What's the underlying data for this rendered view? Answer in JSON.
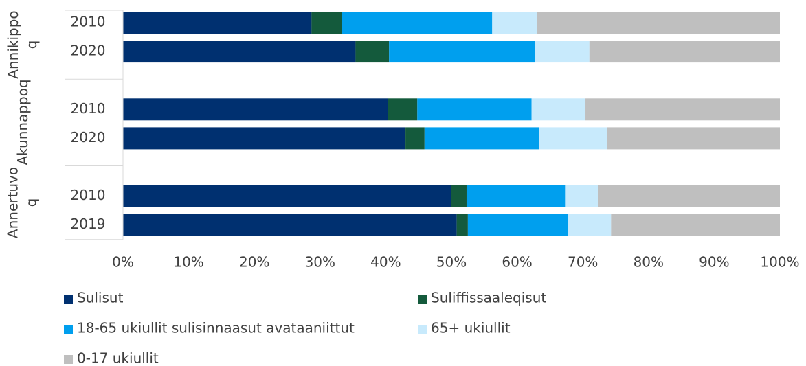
{
  "chart_data": {
    "type": "stacked_bar_horizontal",
    "groups": [
      {
        "name": "Annikippoq",
        "categories": [
          "2010",
          "2020"
        ]
      },
      {
        "name": "Akunnappoq",
        "categories": [
          "2010",
          "2020"
        ]
      },
      {
        "name": "Annertuvoq",
        "categories": [
          "2010",
          "2019"
        ]
      }
    ],
    "series": [
      {
        "name": "Sulisut",
        "color": "#003070",
        "values": [
          28.7,
          35.4,
          40.3,
          43.0,
          49.9,
          50.8
        ]
      },
      {
        "name": "Suliffissaaleqisut",
        "color": "#145a3c",
        "values": [
          4.6,
          5.1,
          4.5,
          2.9,
          2.4,
          1.7
        ]
      },
      {
        "name": "18-65 ukiullit sulisinnaasut avataaniittut",
        "color": "#009fee",
        "values": [
          22.9,
          22.2,
          17.4,
          17.5,
          15.0,
          15.2
        ]
      },
      {
        "name": "65+ ukiullit",
        "color": "#c8eafc",
        "values": [
          6.8,
          8.3,
          8.2,
          10.3,
          5.0,
          6.6
        ]
      },
      {
        "name": "0-17 ukiullit",
        "color": "#bfbfbf",
        "values": [
          37.0,
          29.0,
          29.6,
          26.3,
          27.7,
          25.7
        ]
      }
    ],
    "xlim": [
      0,
      100
    ],
    "xticks": [
      {
        "value": 0,
        "label": "0%"
      },
      {
        "value": 10,
        "label": "10%"
      },
      {
        "value": 20,
        "label": "20%"
      },
      {
        "value": 30,
        "label": "30%"
      },
      {
        "value": 40,
        "label": "40%"
      },
      {
        "value": 50,
        "label": "50%"
      },
      {
        "value": 60,
        "label": "60%"
      },
      {
        "value": 70,
        "label": "70%"
      },
      {
        "value": 80,
        "label": "80%"
      },
      {
        "value": 90,
        "label": "90%"
      },
      {
        "value": 100,
        "label": "100%"
      }
    ]
  }
}
